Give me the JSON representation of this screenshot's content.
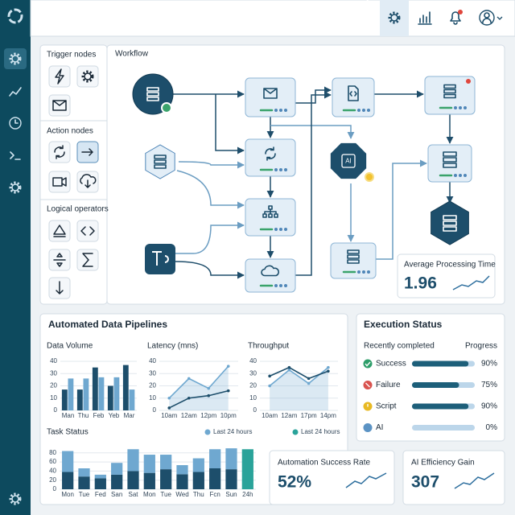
{
  "palette": {
    "sections": [
      "Trigger nodes",
      "Action nodes",
      "Logical operators"
    ]
  },
  "workflow": {
    "title": "Workflow",
    "ai_node": "AI",
    "metric": {
      "label": "Average Processing Time",
      "value": "1.96"
    }
  },
  "pipelines": {
    "title": "Automated Data Pipelines"
  },
  "chart_data": [
    {
      "type": "bar",
      "title": "Data Volume",
      "categories": [
        "Man",
        "Thu",
        "Feb",
        "Yeb",
        "Mar"
      ],
      "series": [
        {
          "color": "#1d4e6b",
          "values": [
            17,
            17,
            35,
            20,
            37
          ]
        },
        {
          "color": "#6fa8d0",
          "values": [
            26,
            26,
            27,
            27,
            17
          ]
        }
      ],
      "ylim": [
        0,
        42
      ],
      "yticks": [
        0,
        10,
        20,
        30,
        40
      ],
      "grid": true
    },
    {
      "type": "line",
      "title": "Latency (mns)",
      "categories": [
        "10am",
        "12am",
        "12pm",
        "10pm"
      ],
      "series": [
        {
          "color": "#6fa8d0",
          "area": true,
          "values": [
            10,
            26,
            18,
            36
          ]
        },
        {
          "color": "#1d4e6b",
          "values": [
            2,
            10,
            12,
            16
          ]
        }
      ],
      "ylim": [
        0,
        42
      ],
      "yticks": [
        0,
        10,
        20,
        30,
        40
      ],
      "grid": true
    },
    {
      "type": "line",
      "title": "Throughput",
      "categories": [
        "10am",
        "12am",
        "17pm",
        "14pm"
      ],
      "series": [
        {
          "color": "#6fa8d0",
          "area": true,
          "values": [
            20,
            33,
            22,
            35
          ]
        },
        {
          "color": "#1d4e6b",
          "values": [
            28,
            35,
            26,
            32
          ]
        }
      ],
      "ylim": [
        0,
        42
      ],
      "yticks": [
        0,
        10,
        20,
        30,
        40
      ],
      "grid": true
    },
    {
      "type": "bar",
      "stacked": true,
      "title": "Task Status",
      "categories": [
        "Mon",
        "Tue",
        "Fed",
        "San",
        "Sat",
        "Mon",
        "Tue",
        "Wed",
        "Thu",
        "Fcn",
        "Sun",
        "24h"
      ],
      "series": [
        {
          "color": "#1d4e6b",
          "values": [
            38,
            28,
            24,
            32,
            40,
            36,
            44,
            33,
            38,
            46,
            44,
            null
          ]
        },
        {
          "name": "Last 24 hours",
          "color": "#6fa8d0",
          "values": [
            46,
            18,
            8,
            26,
            48,
            40,
            32,
            20,
            30,
            42,
            46,
            null
          ]
        },
        {
          "name": "Last 24 hours",
          "color": "#2aa39a",
          "values": [
            null,
            null,
            null,
            null,
            null,
            null,
            null,
            null,
            null,
            null,
            null,
            88
          ]
        }
      ],
      "ylim": [
        0,
        92
      ],
      "yticks": [
        0,
        20,
        40,
        60,
        80
      ],
      "grid": true
    }
  ],
  "execution_status": {
    "title": "Execution Status",
    "header": [
      "Recently completed",
      "Progress"
    ],
    "xlim": [
      0,
      100
    ],
    "rows": [
      {
        "label": "Success",
        "value": 90,
        "value_label": "90%",
        "color": "#2e9e6a"
      },
      {
        "label": "Failure",
        "value": 75,
        "value_label": "75%",
        "color": "#d9534f"
      },
      {
        "label": "Script",
        "value": 90,
        "value_label": "90%",
        "color": "#e8b923"
      },
      {
        "label": "AI",
        "value": 0,
        "value_label": "0%",
        "color": "#5b93c4"
      }
    ]
  },
  "cards": [
    {
      "label": "Automation Success Rate",
      "value": "52%"
    },
    {
      "label": "AI Efficiency Gain",
      "value": "307"
    }
  ]
}
